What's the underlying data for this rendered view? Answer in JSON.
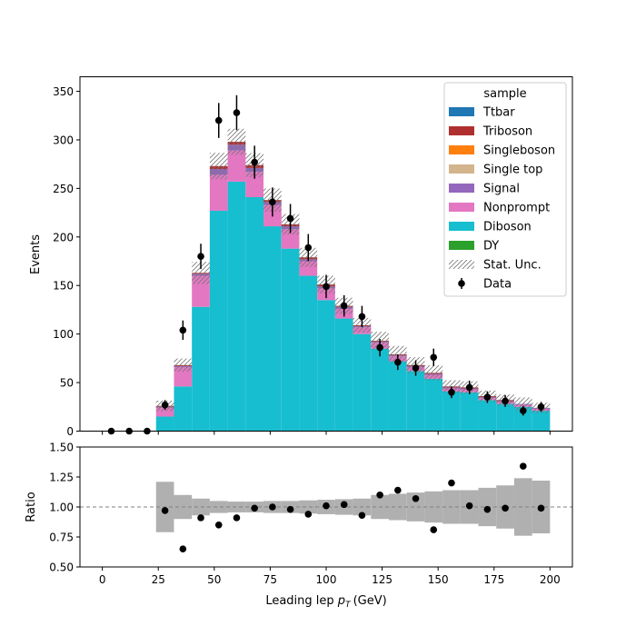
{
  "chart_data": [
    {
      "type": "bar",
      "stacked": true,
      "xlabel": "Leading lep",
      "xlabel_symbol": "p",
      "xlabel_subscript": "T",
      "xlabel_unit": "(GeV)",
      "ylabel": "Events",
      "xlim": [
        -10,
        210
      ],
      "ylim": [
        0,
        365
      ],
      "x_ticks": [
        0,
        25,
        50,
        75,
        100,
        125,
        150,
        175,
        200
      ],
      "y_ticks": [
        0,
        50,
        100,
        150,
        200,
        250,
        300,
        350
      ],
      "bin_edges": [
        24,
        32,
        40,
        48,
        56,
        64,
        72,
        80,
        88,
        96,
        104,
        112,
        120,
        128,
        136,
        144,
        152,
        160,
        168,
        176,
        184,
        192,
        200
      ],
      "legend": {
        "title": "sample",
        "location": "top-right",
        "entries": [
          "Ttbar",
          "Triboson",
          "Singleboson",
          "Single top",
          "Signal",
          "Nonprompt",
          "Diboson",
          "DY",
          "Stat. Unc.",
          "Data"
        ]
      },
      "series": [
        {
          "name": "Diboson",
          "color": "#17becf",
          "values": [
            15,
            46,
            128,
            227,
            257,
            241,
            211,
            188,
            160,
            135,
            116,
            100,
            85,
            72,
            62,
            54,
            41,
            40,
            32,
            28,
            25,
            21
          ]
        },
        {
          "name": "Nonprompt",
          "color": "#e377c2",
          "values": [
            9,
            20,
            32,
            37,
            32,
            26,
            22,
            20,
            15,
            12,
            10,
            7,
            6,
            5,
            4,
            4,
            3,
            3,
            2,
            2,
            2,
            2
          ]
        },
        {
          "name": "Signal",
          "color": "#9467bd",
          "values": [
            1,
            1,
            2,
            6,
            6,
            4,
            3,
            3,
            2,
            2,
            2,
            1,
            1,
            1,
            1,
            1,
            1,
            1,
            1,
            1,
            1,
            1
          ]
        },
        {
          "name": "Single top",
          "color": "#d4b48c",
          "values": [
            0,
            0,
            0,
            0,
            0,
            0,
            0,
            0,
            0,
            0,
            0,
            0,
            0,
            0,
            0,
            0,
            0,
            0,
            0,
            0,
            0,
            0
          ]
        },
        {
          "name": "Singleboson",
          "color": "#ff7f0e",
          "values": [
            0,
            0,
            0,
            0,
            0,
            0,
            0,
            0,
            0,
            0,
            0,
            0,
            0,
            0,
            0,
            0,
            0,
            0,
            0,
            0,
            0,
            0
          ]
        },
        {
          "name": "Triboson",
          "color": "#b03030",
          "values": [
            1,
            1,
            1,
            3,
            3,
            3,
            2,
            2,
            2,
            2,
            1,
            1,
            1,
            1,
            1,
            1,
            1,
            1,
            1,
            1,
            0,
            0
          ]
        },
        {
          "name": "Ttbar",
          "color": "#1f77b4",
          "values": [
            0,
            0,
            0,
            0,
            0,
            0,
            0,
            0,
            0,
            0,
            0,
            0,
            0,
            0,
            0,
            0,
            0,
            0,
            0,
            0,
            0,
            0
          ]
        },
        {
          "name": "DY",
          "color": "#2ca02c",
          "values": [
            0,
            0,
            0,
            0,
            0,
            0,
            0,
            0,
            0,
            0,
            0,
            0,
            0,
            0,
            0,
            0,
            0,
            0,
            0,
            0,
            0,
            0
          ]
        }
      ],
      "stat_unc": {
        "name": "Stat. Unc.",
        "color": "#777777",
        "relative": [
          0.21,
          0.1,
          0.07,
          0.05,
          0.045,
          0.045,
          0.05,
          0.05,
          0.055,
          0.06,
          0.065,
          0.07,
          0.1,
          0.11,
          0.12,
          0.13,
          0.14,
          0.14,
          0.16,
          0.18,
          0.24,
          0.22
        ]
      },
      "data": {
        "name": "Data",
        "color": "#000000",
        "x": [
          4,
          12,
          20,
          28,
          36,
          44,
          52,
          60,
          68,
          76,
          84,
          92,
          100,
          108,
          116,
          124,
          132,
          140,
          148,
          156,
          164,
          172,
          180,
          188,
          196
        ],
        "y": [
          0,
          0,
          0,
          27,
          104,
          180,
          320,
          328,
          277,
          236,
          219,
          189,
          149,
          129,
          118,
          86,
          71,
          65,
          76,
          40,
          45,
          35,
          31,
          21,
          25
        ],
        "err": [
          0,
          0,
          0,
          5,
          10,
          13,
          18,
          18,
          17,
          15,
          15,
          14,
          12,
          11,
          11,
          9,
          8,
          8,
          9,
          6,
          7,
          6,
          6,
          5,
          5
        ]
      }
    },
    {
      "type": "scatter",
      "xlabel": "Leading lep",
      "ylabel": "Ratio",
      "xlim": [
        -10,
        210
      ],
      "ylim": [
        0.5,
        1.5
      ],
      "x_ticks": [
        0,
        25,
        50,
        75,
        100,
        125,
        150,
        175,
        200
      ],
      "y_ticks": [
        "0.50",
        "0.75",
        "1.00",
        "1.25",
        "1.50"
      ],
      "reference_line": 1.0,
      "band_color": "#b0b0b0",
      "points": {
        "x": [
          28,
          36,
          44,
          52,
          60,
          68,
          76,
          84,
          92,
          100,
          108,
          116,
          124,
          132,
          140,
          148,
          156,
          164,
          172,
          180,
          188,
          196
        ],
        "y": [
          0.97,
          0.65,
          0.91,
          0.85,
          0.91,
          0.99,
          1.0,
          0.98,
          0.94,
          1.01,
          1.02,
          0.93,
          1.1,
          1.14,
          1.07,
          0.81,
          1.2,
          1.01,
          0.98,
          0.99,
          1.34,
          0.99
        ]
      }
    }
  ]
}
